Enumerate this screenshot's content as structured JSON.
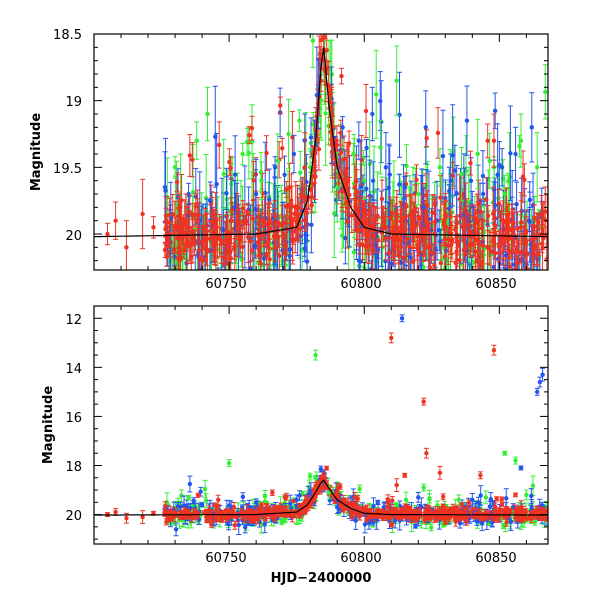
{
  "chart_data": [
    {
      "type": "scatter",
      "panel": "top",
      "xlabel": "",
      "ylabel": "Magnitude",
      "xlim": [
        60700,
        60868
      ],
      "ylim": [
        20.27,
        18.5
      ],
      "y_inverted": true,
      "x_ticks": [
        "60750",
        "60800",
        "60850"
      ],
      "y_ticks": [
        "18.5",
        "19",
        "19.5",
        "20"
      ],
      "model_curve": {
        "color": "#000000",
        "points": [
          [
            60700,
            20.02
          ],
          [
            60760,
            20.0
          ],
          [
            60775,
            19.95
          ],
          [
            60779,
            19.75
          ],
          [
            60782,
            19.3
          ],
          [
            60784,
            18.75
          ],
          [
            60785,
            18.6
          ],
          [
            60787,
            19.05
          ],
          [
            60790,
            19.5
          ],
          [
            60795,
            19.8
          ],
          [
            60800,
            19.95
          ],
          [
            60810,
            20.0
          ],
          [
            60868,
            20.02
          ]
        ]
      },
      "series": [
        {
          "color": "#33ee33",
          "x": [
            60730,
            60738,
            60742,
            60748,
            60755,
            60762,
            60768,
            60772,
            60776,
            60780,
            60781,
            60790,
            60796,
            60800,
            60806,
            60812,
            60820,
            60828,
            60836,
            60842,
            60848,
            60852,
            60858,
            60864
          ],
          "y": [
            19.5,
            19.3,
            19.1,
            19.55,
            19.4,
            19.6,
            19.45,
            19.25,
            19.15,
            19.5,
            18.55,
            19.65,
            19.4,
            19.6,
            19.35,
            18.85,
            19.7,
            19.5,
            19.55,
            19.4,
            19.5,
            19.7,
            19.3,
            19.5
          ]
        },
        {
          "color": "#2255ee",
          "x": [
            60735,
            60743,
            60752,
            60760,
            60767,
            60774,
            60778,
            60783,
            60792,
            60798,
            60803,
            60808,
            60815,
            60822,
            60832,
            60838,
            60844,
            60851,
            60856,
            60862
          ],
          "y": [
            19.7,
            19.75,
            19.8,
            19.7,
            19.5,
            19.4,
            19.3,
            18.95,
            19.2,
            19.3,
            19.1,
            19.5,
            19.65,
            19.8,
            19.6,
            19.15,
            19.7,
            19.5,
            19.4,
            19.2
          ]
        },
        {
          "color": "#ee3322",
          "x": [
            60705,
            60708,
            60712,
            60718,
            60722,
            60728,
            60734,
            60745,
            60757,
            60765,
            60773,
            60778,
            60784,
            60785,
            60788,
            60794,
            60802,
            60808,
            60818,
            60826,
            60834,
            60842,
            60848,
            60858,
            60866
          ],
          "y": [
            20.0,
            19.9,
            20.1,
            19.85,
            19.95,
            20.0,
            19.9,
            19.95,
            19.85,
            19.9,
            19.75,
            19.5,
            18.85,
            18.62,
            19.1,
            19.6,
            19.85,
            19.95,
            19.9,
            20.0,
            19.95,
            19.9,
            19.3,
            19.95,
            19.85
          ]
        }
      ]
    },
    {
      "type": "scatter",
      "panel": "bottom",
      "xlabel": "HJD−2400000",
      "ylabel": "Magnitude",
      "xlim": [
        60700,
        60868
      ],
      "ylim": [
        21.2,
        11.5
      ],
      "y_inverted": true,
      "x_ticks": [
        "60750",
        "60800",
        "60850"
      ],
      "y_ticks": [
        "12",
        "14",
        "16",
        "18",
        "20"
      ],
      "model_curve": {
        "color": "#000000",
        "points": [
          [
            60700,
            20.02
          ],
          [
            60760,
            20.0
          ],
          [
            60775,
            19.9
          ],
          [
            60779,
            19.6
          ],
          [
            60782,
            19.1
          ],
          [
            60784,
            18.7
          ],
          [
            60785,
            18.6
          ],
          [
            60787,
            18.95
          ],
          [
            60790,
            19.4
          ],
          [
            60795,
            19.75
          ],
          [
            60800,
            19.95
          ],
          [
            60810,
            20.0
          ],
          [
            60868,
            20.02
          ]
        ]
      },
      "series": [
        {
          "color": "#33ee33",
          "x": [
            60735,
            60750,
            60782,
            60787,
            60812,
            60822,
            60835,
            60845,
            60852,
            60856,
            60860
          ],
          "y": [
            19.3,
            17.9,
            13.5,
            19.1,
            19.6,
            18.9,
            19.4,
            19.3,
            17.5,
            17.8,
            19.2
          ]
        },
        {
          "color": "#2255ee",
          "x": [
            60740,
            60760,
            60775,
            60790,
            60805,
            60814,
            60820,
            60840,
            60858,
            60864,
            60865,
            60866
          ],
          "y": [
            19.6,
            19.5,
            19.4,
            19.7,
            19.5,
            12.0,
            19.3,
            19.4,
            18.1,
            15.0,
            14.6,
            14.3
          ]
        },
        {
          "color": "#ee3322",
          "x": [
            60705,
            60708,
            60712,
            60718,
            60722,
            60735,
            60760,
            60778,
            60785,
            60798,
            60810,
            60812,
            60815,
            60822,
            60823,
            60828,
            60836,
            60843,
            60848,
            60858,
            60866
          ],
          "y": [
            20.0,
            19.9,
            20.15,
            20.1,
            19.95,
            20.0,
            19.9,
            19.5,
            18.6,
            19.9,
            12.8,
            18.8,
            18.4,
            15.4,
            17.5,
            18.3,
            19.6,
            18.4,
            13.3,
            19.7,
            19.9
          ]
        }
      ]
    }
  ]
}
